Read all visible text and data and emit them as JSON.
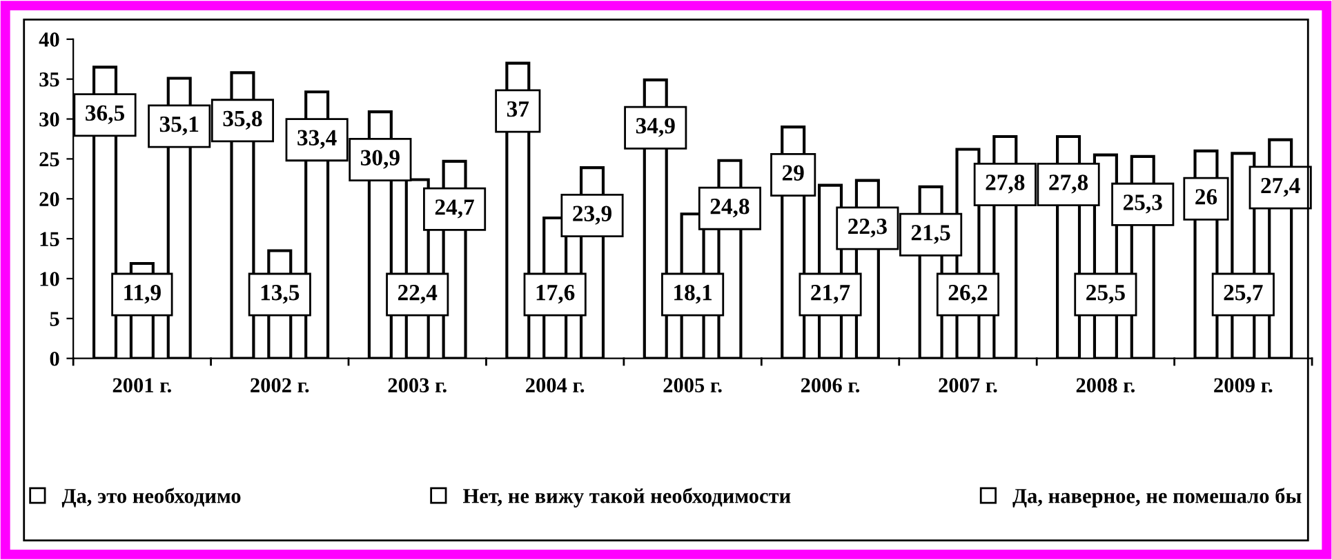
{
  "chart_data": {
    "type": "bar",
    "categories": [
      "2001 г.",
      "2002 г.",
      "2003 г.",
      "2004 г.",
      "2005 г.",
      "2006 г.",
      "2007 г.",
      "2008 г.",
      "2009 г."
    ],
    "series": [
      {
        "name": "Да, это необходимо",
        "color": "#ffffff",
        "values": [
          36.5,
          35.8,
          30.9,
          37,
          34.9,
          29,
          21.5,
          27.8,
          26
        ],
        "value_labels": [
          "36,5",
          "35,8",
          "30,9",
          "37",
          "34,9",
          "29",
          "21,5",
          "27,8",
          "26"
        ]
      },
      {
        "name": "Нет, не вижу такой необходимости",
        "color": "#ffffff",
        "values": [
          11.9,
          13.5,
          22.4,
          17.6,
          18.1,
          21.7,
          26.2,
          25.5,
          25.7
        ],
        "value_labels": [
          "11,9",
          "13,5",
          "22,4",
          "17,6",
          "18,1",
          "21,7",
          "26,2",
          "25,5",
          "25,7"
        ]
      },
      {
        "name": "Да, наверное, не помешало бы",
        "color": "#ffffff",
        "values": [
          35.1,
          33.4,
          24.7,
          23.9,
          24.8,
          22.3,
          27.8,
          25.3,
          27.4
        ],
        "value_labels": [
          "35,1",
          "33,4",
          "24,7",
          "23,9",
          "24,8",
          "22,3",
          "27,8",
          "25,3",
          "27,4"
        ]
      }
    ],
    "ylim": [
      0,
      40
    ],
    "yticks": [
      0,
      5,
      10,
      15,
      20,
      25,
      30,
      35,
      40
    ],
    "grid": false,
    "legend": "bottom"
  }
}
